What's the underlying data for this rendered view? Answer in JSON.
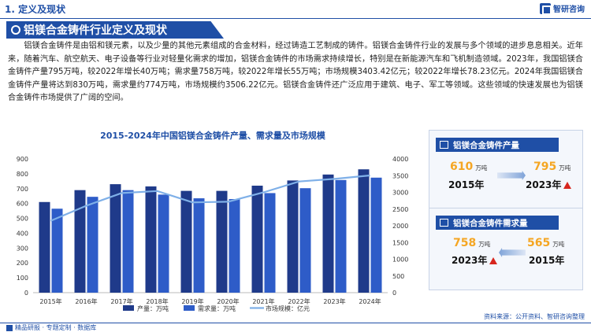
{
  "header": {
    "section_title": "1. 定义及现状",
    "logo_text": "智研咨询"
  },
  "headline": "铝镁合金铸件行业定义及现状",
  "body_text": "铝镁合金铸件是由铝和镁元素，以及少量的其他元素组成的合金材料，经过铸造工艺制成的铸件。铝镁合金铸件行业的发展与多个领域的进步息息相关。近年来，随着汽车、航空航天、电子设备等行业对轻量化需求的增加，铝镁合金铸件的市场需求持续增长，特别是在新能源汽车和飞机制造领域。2023年，我国铝镁合金铸件产量795万吨，较2022年增长40万吨；需求量758万吨，较2022年增长55万吨；市场规模3403.42亿元；较2022年增长78.23亿元。2024年我国铝镁合金铸件产量将达到830万吨，需求量约774万吨，市场规模约3506.22亿元。铝镁合金铸件还广泛应用于建筑、电子、军工等领域。这些领域的快速发展也为铝镁合金铸件市场提供了广阔的空间。",
  "chart_data": {
    "type": "bar",
    "title": "2015-2024年中国铝镁合金铸件产量、需求量及市场规模",
    "categories": [
      "2015年",
      "2016年",
      "2017年",
      "2018年",
      "2019年",
      "2020年",
      "2021年",
      "2022年",
      "2023年",
      "2024年"
    ],
    "series": [
      {
        "name": "产量：万吨",
        "type": "bar",
        "axis": "left",
        "color": "#1f3a8a",
        "values": [
          610,
          690,
          730,
          715,
          685,
          685,
          720,
          755,
          795,
          830
        ]
      },
      {
        "name": "需求量：万吨",
        "type": "bar",
        "axis": "left",
        "color": "#2e5cc8",
        "values": [
          565,
          645,
          690,
          660,
          635,
          630,
          670,
          703,
          758,
          774
        ]
      },
      {
        "name": "市场规模：亿元",
        "type": "line",
        "axis": "right",
        "color": "#7fb0e8",
        "values": [
          2150,
          2600,
          2980,
          3040,
          2700,
          2720,
          3000,
          3325.19,
          3403.42,
          3506.22
        ]
      }
    ],
    "ylim_left": [
      0,
      900
    ],
    "ylim_right": [
      0,
      4000
    ],
    "yticks_left": [
      0,
      100,
      200,
      300,
      400,
      500,
      600,
      700,
      800,
      900
    ],
    "yticks_right": [
      0,
      500,
      1000,
      1500,
      2000,
      2500,
      3000,
      3500,
      4000
    ],
    "legend": "bottom",
    "grid": false
  },
  "card_production": {
    "title": "铝镁合金铸件产量",
    "left_value": "610",
    "left_unit": "万吨",
    "left_year": "2015年",
    "right_value": "795",
    "right_unit": "万吨",
    "right_year": "2023年"
  },
  "card_demand": {
    "title": "铝镁合金铸件需求量",
    "left_value": "758",
    "left_unit": "万吨",
    "left_year": "2023年",
    "right_value": "565",
    "right_unit": "万吨",
    "right_year": "2015年"
  },
  "footer": {
    "left_text": "精品研报 · 专题定制 · 数据库",
    "source": "资料来源：公开资料、智研咨询整理"
  },
  "colors": {
    "brand": "#1f4fa6",
    "accent": "#f5a623",
    "up": "#d7261e"
  }
}
